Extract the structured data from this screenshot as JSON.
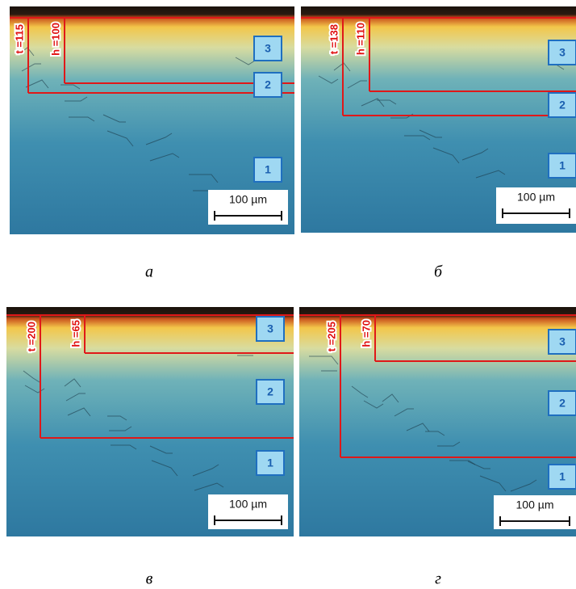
{
  "panels": [
    {
      "caption": "а",
      "t_label": "t =115",
      "h_label": "h =100",
      "zones": [
        "3",
        "2",
        "1"
      ],
      "scale_bar": "100 µm"
    },
    {
      "caption": "б",
      "t_label": "t =138",
      "h_label": "h =110",
      "zones": [
        "3",
        "2",
        "1"
      ],
      "scale_bar": "100 µm"
    },
    {
      "caption": "в",
      "t_label": "t =200",
      "h_label": "h =65",
      "zones": [
        "3",
        "2",
        "1"
      ],
      "scale_bar": "100 µm"
    },
    {
      "caption": "г",
      "t_label": "t =205",
      "h_label": "h =70",
      "zones": [
        "3",
        "2",
        "1"
      ],
      "scale_bar": "100 µm"
    }
  ]
}
